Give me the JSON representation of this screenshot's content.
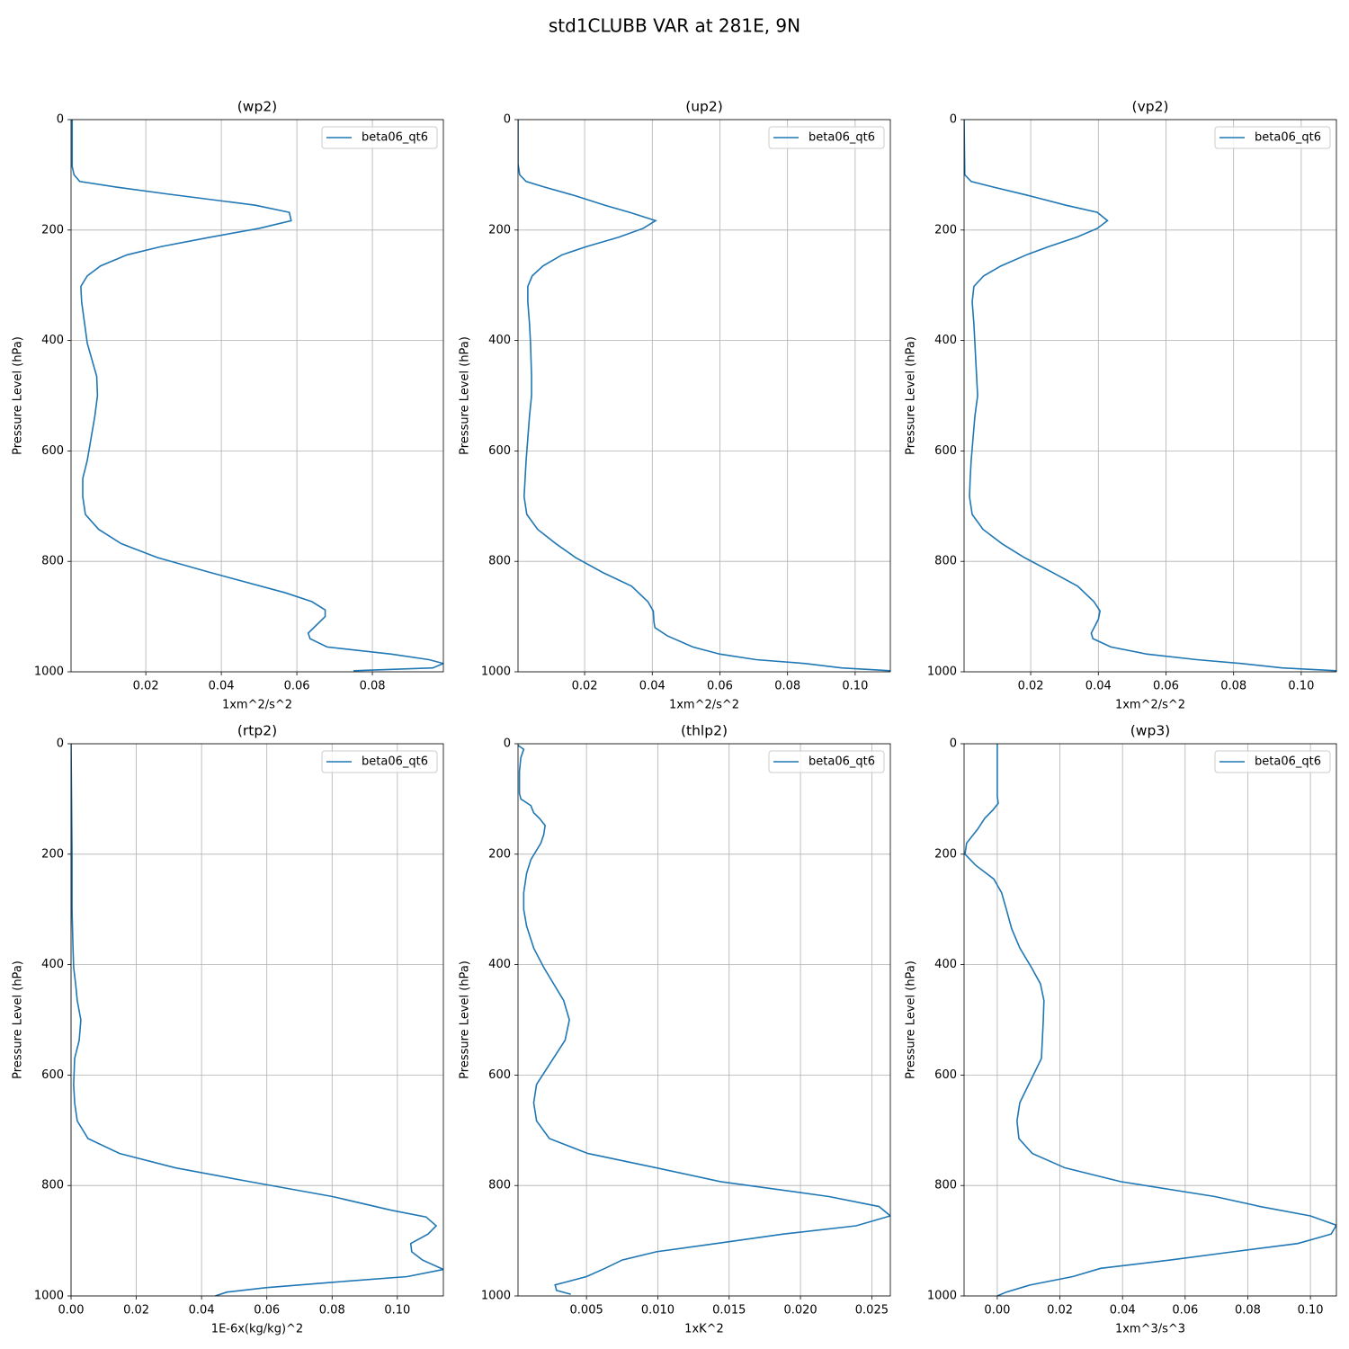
{
  "title": "std1CLUBB VAR at 281E, 9N",
  "chart_data": [
    {
      "type": "line",
      "title": "(wp2)",
      "xlabel": "1xm^2/s^2",
      "ylabel": "Pressure Level (hPa)",
      "xlim": [
        0.0002,
        0.0988
      ],
      "ylim": [
        1000,
        0
      ],
      "xticks": [
        0.02,
        0.04,
        0.06,
        0.08
      ],
      "yticks": [
        0,
        200,
        400,
        600,
        800,
        1000
      ],
      "grid": true,
      "legend": "upper right",
      "series": [
        {
          "name": "beta06_qt6",
          "color": "#1f77b4",
          "x": [
            0.0005,
            0.0005,
            0.001,
            0.0025,
            0.012,
            0.026,
            0.049,
            0.058,
            0.0585,
            0.05,
            0.037,
            0.024,
            0.015,
            0.008,
            0.0045,
            0.0028,
            0.003,
            0.0038,
            0.0045,
            0.007,
            0.0072,
            0.0065,
            0.0045,
            0.0033,
            0.0033,
            0.004,
            0.0075,
            0.0135,
            0.023,
            0.037,
            0.057,
            0.064,
            0.0675,
            0.0675,
            0.063,
            0.0635,
            0.068,
            0.085,
            0.095,
            0.0988,
            0.096,
            0.075
          ],
          "y": [
            0,
            85,
            100,
            112,
            122,
            135,
            155,
            168,
            183,
            197,
            213,
            230,
            245,
            265,
            283,
            302,
            330,
            370,
            405,
            465,
            500,
            537,
            617,
            650,
            683,
            715,
            742,
            768,
            793,
            820,
            857,
            873,
            888,
            900,
            930,
            940,
            955,
            968,
            978,
            985,
            993,
            998
          ]
        }
      ]
    },
    {
      "type": "line",
      "title": "(up2)",
      "xlabel": "1xm^2/s^2",
      "ylabel": "Pressure Level (hPa)",
      "xlim": [
        0.0003,
        0.1104
      ],
      "ylim": [
        1000,
        0
      ],
      "xticks": [
        0.02,
        0.04,
        0.06,
        0.08,
        {
          "value": 0.1,
          "label": "0.10"
        }
      ],
      "yticks": [
        0,
        200,
        400,
        600,
        800,
        1000
      ],
      "grid": true,
      "legend": "upper right",
      "series": [
        {
          "name": "beta06_qt6",
          "color": "#1f77b4",
          "x": [
            0.0003,
            0.0003,
            0.0008,
            0.0027,
            0.008,
            0.0173,
            0.0259,
            0.0333,
            0.041,
            0.0373,
            0.0301,
            0.0205,
            0.0133,
            0.0077,
            0.0045,
            0.0032,
            0.0032,
            0.0037,
            0.004,
            0.0043,
            0.0043,
            0.0037,
            0.0027,
            0.0024,
            0.0021,
            0.0029,
            0.0061,
            0.0115,
            0.0173,
            0.0253,
            0.0339,
            0.0387,
            0.0403,
            0.0405,
            0.0408,
            0.0445,
            0.052,
            0.06,
            0.0707,
            0.0853,
            0.096,
            0.1104
          ],
          "y": [
            0,
            80,
            100,
            112,
            122,
            138,
            155,
            168,
            183,
            197,
            213,
            230,
            245,
            265,
            283,
            302,
            330,
            370,
            405,
            465,
            500,
            537,
            617,
            650,
            683,
            715,
            742,
            768,
            793,
            820,
            845,
            873,
            890,
            910,
            920,
            935,
            955,
            968,
            978,
            985,
            993,
            998
          ]
        }
      ]
    },
    {
      "type": "line",
      "title": "(vp2)",
      "xlabel": "1xm^2/s^2",
      "ylabel": "Pressure Level (hPa)",
      "xlim": [
        0.0003,
        0.1104
      ],
      "ylim": [
        1000,
        0
      ],
      "xticks": [
        0.02,
        0.04,
        0.06,
        0.08,
        {
          "value": 0.1,
          "label": "0.10"
        }
      ],
      "yticks": [
        0,
        200,
        400,
        600,
        800,
        1000
      ],
      "grid": true,
      "legend": "upper right",
      "series": [
        {
          "name": "beta06_qt6",
          "color": "#1f77b4",
          "x": [
            0.0003,
            0.0005,
            0.0005,
            0.0024,
            0.0088,
            0.0197,
            0.0304,
            0.0397,
            0.0427,
            0.0397,
            0.0336,
            0.0253,
            0.0187,
            0.0112,
            0.0061,
            0.0032,
            0.0027,
            0.0032,
            0.0035,
            0.004,
            0.0043,
            0.0035,
            0.0024,
            0.0021,
            0.0019,
            0.0027,
            0.0059,
            0.0115,
            0.0181,
            0.0264,
            0.0339,
            0.0387,
            0.0405,
            0.04,
            0.0379,
            0.0384,
            0.0437,
            0.0544,
            0.0691,
            0.0824,
            0.0944,
            0.1104
          ],
          "y": [
            0,
            95,
            100,
            112,
            122,
            138,
            155,
            168,
            183,
            197,
            213,
            230,
            245,
            265,
            283,
            302,
            330,
            370,
            405,
            465,
            500,
            537,
            617,
            650,
            683,
            715,
            742,
            768,
            793,
            820,
            845,
            873,
            890,
            905,
            930,
            940,
            955,
            968,
            978,
            985,
            993,
            998
          ]
        }
      ]
    },
    {
      "type": "line",
      "title": "(rtp2)",
      "xlabel": "1E-6x(kg/kg)^2",
      "ylabel": "Pressure Level (hPa)",
      "xlim": [
        0,
        0.1141
      ],
      "ylim": [
        1000,
        0
      ],
      "xticks": [
        {
          "value": 0,
          "label": "0.00"
        },
        0.02,
        0.04,
        0.06,
        0.08,
        {
          "value": 0.1,
          "label": "0.10"
        }
      ],
      "yticks": [
        0,
        200,
        400,
        600,
        800,
        1000
      ],
      "grid": true,
      "legend": "upper right",
      "series": [
        {
          "name": "beta06_qt6",
          "color": "#1f77b4",
          "x": [
            0,
            0.0003,
            0.0003,
            0.0006,
            0.0008,
            0.0014,
            0.0019,
            0.003,
            0.0025,
            0.0011,
            0.0008,
            0.0011,
            0.0019,
            0.0052,
            0.0149,
            0.032,
            0.0547,
            0.0801,
            0.0983,
            0.1088,
            0.1119,
            0.1094,
            0.1041,
            0.1044,
            0.1077,
            0.1141,
            0.103,
            0.0807,
            0.0597,
            0.0478,
            0.0442
          ],
          "y": [
            0,
            200,
            300,
            370,
            405,
            435,
            465,
            500,
            537,
            570,
            617,
            650,
            683,
            715,
            742,
            768,
            793,
            820,
            845,
            857,
            873,
            888,
            905,
            920,
            935,
            952,
            965,
            975,
            985,
            993,
            1000
          ]
        }
      ]
    },
    {
      "type": "line",
      "title": "(thlp2)",
      "xlabel": "1xK^2",
      "ylabel": "Pressure Level (hPa)",
      "xlim": [
        0.0002,
        0.0263
      ],
      "ylim": [
        1000,
        0
      ],
      "xticks": [
        0.005,
        {
          "value": 0.01,
          "label": "0.010"
        },
        0.015,
        {
          "value": 0.02,
          "label": "0.020"
        },
        0.025
      ],
      "yticks": [
        0,
        200,
        400,
        600,
        800,
        1000
      ],
      "grid": true,
      "legend": "upper right",
      "series": [
        {
          "name": "beta06_qt6",
          "color": "#1f77b4",
          "x": [
            0.0002,
            0.0006,
            0.0004,
            0.0003,
            0.0003,
            0.0004,
            0.0011,
            0.0013,
            0.0017,
            0.0021,
            0.002,
            0.0018,
            0.0011,
            0.0008,
            0.0006,
            0.0006,
            0.0008,
            0.0013,
            0.002,
            0.0034,
            0.0038,
            0.0035,
            0.0015,
            0.0013,
            0.0015,
            0.0024,
            0.0051,
            0.0099,
            0.0144,
            0.022,
            0.0255,
            0.0263,
            0.0239,
            0.0188,
            0.0141,
            0.0099,
            0.0075,
            0.0063,
            0.005,
            0.0028,
            0.0029,
            0.0039
          ],
          "y": [
            3,
            10,
            25,
            50,
            90,
            100,
            112,
            125,
            135,
            148,
            165,
            180,
            210,
            235,
            270,
            300,
            330,
            370,
            405,
            465,
            500,
            537,
            617,
            650,
            683,
            715,
            742,
            768,
            793,
            820,
            838,
            855,
            873,
            888,
            905,
            920,
            935,
            950,
            965,
            980,
            990,
            997
          ]
        }
      ]
    },
    {
      "type": "line",
      "title": "(wp3)",
      "xlabel": "1xm^3/s^3",
      "ylabel": "Pressure Level (hPa)",
      "xlim": [
        -0.0106,
        0.1083
      ],
      "ylim": [
        1000,
        0
      ],
      "xticks": [
        {
          "value": 0,
          "label": "0.00"
        },
        0.02,
        0.04,
        0.06,
        0.08,
        {
          "value": 0.1,
          "label": "0.10"
        }
      ],
      "yticks": [
        0,
        200,
        400,
        600,
        800,
        1000
      ],
      "grid": true,
      "legend": "upper right",
      "series": [
        {
          "name": "beta06_qt6",
          "color": "#1f77b4",
          "x": [
            0,
            0,
            0.0003,
            -0.0014,
            -0.004,
            -0.0063,
            -0.0098,
            -0.0103,
            -0.0069,
            -0.0011,
            0.0014,
            0.0029,
            0.0046,
            0.0072,
            0.0109,
            0.0138,
            0.0149,
            0.0147,
            0.0141,
            0.0072,
            0.0063,
            0.0069,
            0.0112,
            0.0216,
            0.0394,
            0.0695,
            0.0839,
            0.1,
            0.1083,
            0.1066,
            0.096,
            0.0753,
            0.0552,
            0.033,
            0.0241,
            0.0106,
            0.0029,
            0
          ],
          "y": [
            0,
            95,
            108,
            120,
            135,
            155,
            180,
            200,
            220,
            245,
            270,
            300,
            335,
            370,
            405,
            435,
            465,
            500,
            570,
            650,
            683,
            715,
            742,
            768,
            793,
            820,
            838,
            855,
            872,
            888,
            905,
            920,
            935,
            950,
            965,
            980,
            993,
            1000
          ]
        }
      ]
    }
  ]
}
